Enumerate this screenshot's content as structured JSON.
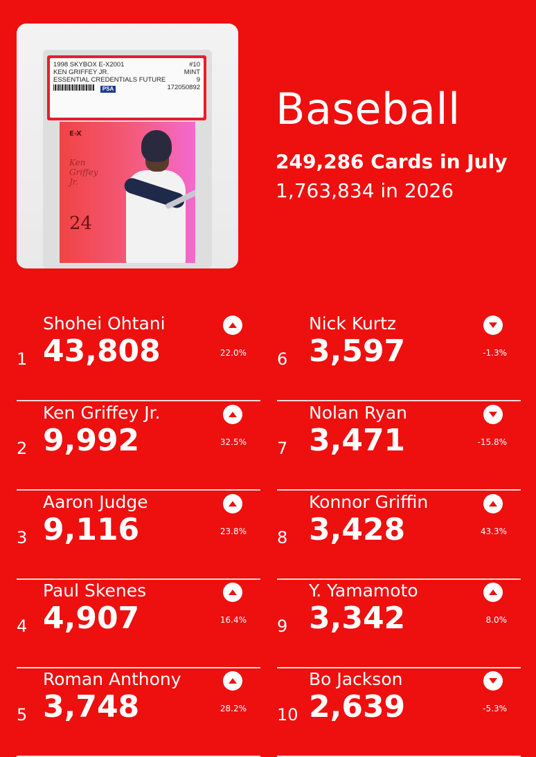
{
  "title": "Baseball",
  "subtitle": "249,286 Cards in July",
  "subtitle2": "1,763,834 in 2026",
  "card": {
    "label_line1_left": "1998 SKYBOX E-X2001",
    "label_line1_right": "#10",
    "label_line2_left": "KEN GRIFFEY JR.",
    "label_line2_right": "MINT",
    "label_line3_left": "ESSENTIAL CREDENTIALS FUTURE",
    "label_line3_right": "9",
    "cert_number": "172050892",
    "grader": "PSA",
    "card_number": "24"
  },
  "rankings": [
    {
      "rank": "1",
      "name": "Shohei Ohtani",
      "count": "43,808",
      "pct": "22.0%",
      "direction": "up"
    },
    {
      "rank": "2",
      "name": "Ken Griffey Jr.",
      "count": "9,992",
      "pct": "32.5%",
      "direction": "up"
    },
    {
      "rank": "3",
      "name": "Aaron Judge",
      "count": "9,116",
      "pct": "23.8%",
      "direction": "up"
    },
    {
      "rank": "4",
      "name": "Paul Skenes",
      "count": "4,907",
      "pct": "16.4%",
      "direction": "up"
    },
    {
      "rank": "5",
      "name": "Roman Anthony",
      "count": "3,748",
      "pct": "28.2%",
      "direction": "up"
    },
    {
      "rank": "6",
      "name": "Nick Kurtz",
      "count": "3,597",
      "pct": "-1.3%",
      "direction": "down"
    },
    {
      "rank": "7",
      "name": "Nolan Ryan",
      "count": "3,471",
      "pct": "-15.8%",
      "direction": "down"
    },
    {
      "rank": "8",
      "name": "Konnor Griffin",
      "count": "3,428",
      "pct": "43.3%",
      "direction": "up"
    },
    {
      "rank": "9",
      "name": "Y. Yamamoto",
      "count": "3,342",
      "pct": "8.0%",
      "direction": "up"
    },
    {
      "rank": "10",
      "name": "Bo Jackson",
      "count": "2,639",
      "pct": "-5.3%",
      "direction": "down"
    }
  ],
  "colors": {
    "background": "#ee0f0f",
    "arrow_fill": "#ee0f0f"
  }
}
